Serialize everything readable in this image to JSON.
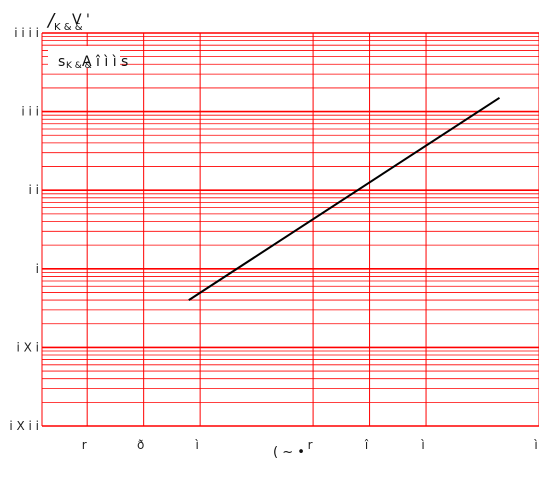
{
  "chart_data": {
    "type": "line",
    "ylabel_main": "/",
    "ylabel_sub": "K & &",
    "ylabel_tail": "V '",
    "xlabel": "( ~ •",
    "annotation_main": "s",
    "annotation_sub": "K & &",
    "annotation_tail": "A î ì ì s",
    "x_tick_labels": [
      "r",
      "ð",
      "ì",
      "r",
      "î",
      "ì",
      "ì"
    ],
    "y_tick_labels": [
      "i i i i",
      "i i i",
      "i i",
      "i",
      "i X i",
      "i X i i"
    ],
    "y_scale": "log",
    "ylim": [
      0.01,
      1000
    ],
    "x_tick_positions": [
      0,
      1,
      2,
      4,
      5,
      6,
      8
    ],
    "xlim": [
      -0.8,
      8
    ],
    "grid": true,
    "grid_color": "#ff0000",
    "line_color": "#000000",
    "series": [
      {
        "x": [
          1.8,
          7.3
        ],
        "y": [
          0.4,
          150
        ]
      }
    ]
  }
}
